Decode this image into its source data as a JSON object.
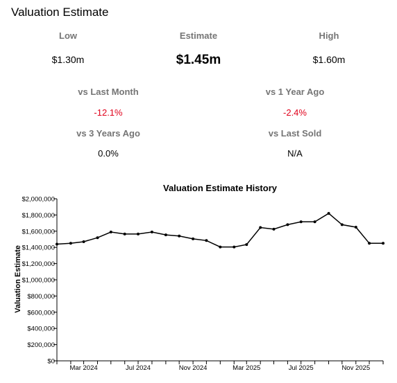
{
  "page_title": "Valuation Estimate",
  "estimates": {
    "low": {
      "label": "Low",
      "value": "$1.30m"
    },
    "estimate": {
      "label": "Estimate",
      "value": "$1.45m"
    },
    "high": {
      "label": "High",
      "value": "$1.60m"
    }
  },
  "changes": {
    "last_month": {
      "label": "vs Last Month",
      "value": "-12.1%"
    },
    "year_ago": {
      "label": "vs 1 Year Ago",
      "value": "-2.4%"
    },
    "three_years": {
      "label": "vs 3 Years Ago",
      "value": "0.0%"
    },
    "last_sold": {
      "label": "vs Last Sold",
      "value": "N/A"
    }
  },
  "colors": {
    "negative": "#e0001b",
    "line": "#000000"
  },
  "chart_data": {
    "type": "line",
    "title": "Valuation Estimate History",
    "xlabel": "",
    "ylabel": "Valuation Estimate",
    "ylim": [
      0,
      2000000
    ],
    "yticks": [
      0,
      200000,
      400000,
      600000,
      800000,
      1000000,
      1200000,
      1400000,
      1600000,
      1800000,
      2000000
    ],
    "ytick_labels": [
      "$0",
      "$200,000",
      "$400,000",
      "$600,000",
      "$800,000",
      "$1,000,000",
      "$1,200,000",
      "$1,400,000",
      "$1,600,000",
      "$1,800,000",
      "$2,000,000"
    ],
    "xlim": [
      "2024-01-01",
      "2026-01-01"
    ],
    "xticks": [
      "2024-03-01",
      "2024-07-01",
      "2024-11-01",
      "2025-03-01",
      "2025-07-01",
      "2025-11-01"
    ],
    "xtick_labels": [
      "Mar 2024",
      "Jul 2024",
      "Nov 2024",
      "Mar 2025",
      "Jul 2025",
      "Nov 2025"
    ],
    "grid": false,
    "legend": "none",
    "series": [
      {
        "x": [
          "2024-01-01",
          "2024-02-01",
          "2024-03-01",
          "2024-04-01",
          "2024-05-01",
          "2024-06-01",
          "2024-07-01",
          "2024-08-01",
          "2024-09-01",
          "2024-10-01",
          "2024-11-01",
          "2024-12-01",
          "2025-01-01",
          "2025-02-01",
          "2025-03-01",
          "2025-04-01",
          "2025-05-01",
          "2025-06-01",
          "2025-07-01",
          "2025-08-01",
          "2025-09-01",
          "2025-10-01",
          "2025-11-01",
          "2025-12-01",
          "2026-01-01"
        ],
        "values": [
          1440000,
          1450000,
          1470000,
          1520000,
          1590000,
          1565000,
          1565000,
          1590000,
          1555000,
          1540000,
          1505000,
          1485000,
          1405000,
          1405000,
          1435000,
          1645000,
          1625000,
          1680000,
          1715000,
          1715000,
          1820000,
          1680000,
          1650000,
          1450000,
          1450000
        ]
      }
    ]
  }
}
